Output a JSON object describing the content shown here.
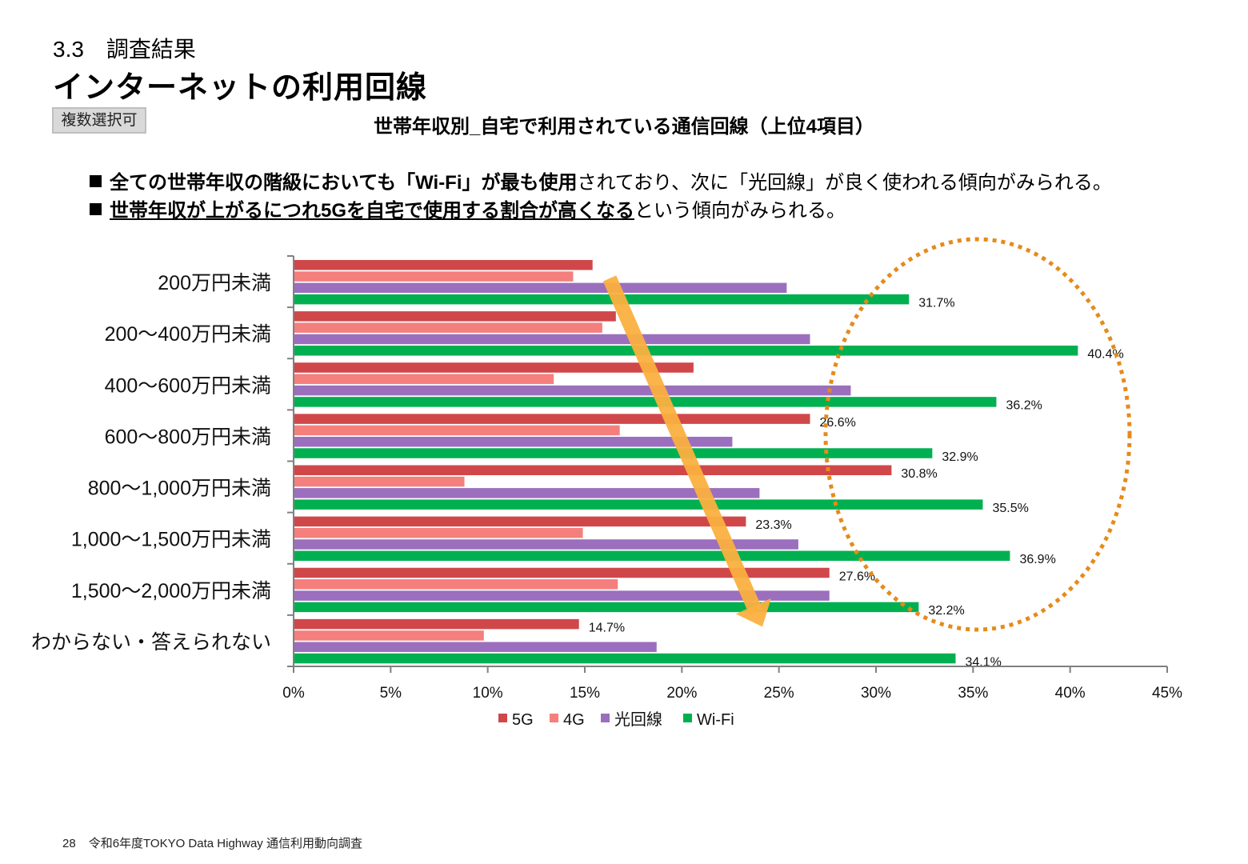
{
  "header": {
    "section": "3.3　調査結果",
    "title": "インターネットの利用回線",
    "badge": "複数選択可"
  },
  "bullets": [
    {
      "bold": "全ての世帯年収の階級においても「Wi-Fi」が最も使用",
      "rest": "されており、次に「光回線」が良く使われる傾向がみられる。"
    },
    {
      "underline": "世帯年収が上がるにつれ5Gを自宅で使用する割合が高くなる",
      "rest": "という傾向がみられる。"
    }
  ],
  "chart_data": {
    "type": "bar",
    "orientation": "horizontal",
    "title": "世帯年収別_自宅で利用されている通信回線（上位4項目）",
    "categories": [
      "200万円未満",
      "200～400万円未満",
      "400～600万円未満",
      "600～800万円未満",
      "800～1,000万円未満",
      "1,000～1,500万円未満",
      "1,500～2,000万円未満",
      "わからない・答えられない"
    ],
    "series": [
      {
        "name": "5G",
        "color": "#d0474a",
        "values": [
          15.4,
          16.6,
          20.6,
          26.6,
          30.8,
          23.3,
          27.6,
          14.7
        ],
        "labels": [
          "",
          "",
          "",
          "26.6%",
          "30.8%",
          "23.3%",
          "27.6%",
          "14.7%"
        ]
      },
      {
        "name": "4G",
        "color": "#f47f7c",
        "values": [
          14.4,
          15.9,
          13.4,
          16.8,
          8.8,
          14.9,
          16.7,
          9.8
        ],
        "labels": [
          "",
          "",
          "",
          "",
          "",
          "",
          "",
          ""
        ]
      },
      {
        "name": "光回線",
        "color": "#9b6fbd",
        "values": [
          25.4,
          26.6,
          28.7,
          22.6,
          24.0,
          26.0,
          27.6,
          18.7
        ],
        "labels": [
          "",
          "",
          "",
          "",
          "",
          "",
          "",
          ""
        ]
      },
      {
        "name": "Wi-Fi",
        "color": "#00b050",
        "values": [
          31.7,
          40.4,
          36.2,
          32.9,
          35.5,
          36.9,
          32.2,
          34.1
        ],
        "labels": [
          "31.7%",
          "40.4%",
          "36.2%",
          "32.9%",
          "35.5%",
          "36.9%",
          "32.2%",
          "34.1%"
        ]
      }
    ],
    "xlim": [
      0,
      45
    ],
    "xticks": [
      "0%",
      "5%",
      "10%",
      "15%",
      "20%",
      "25%",
      "30%",
      "35%",
      "40%",
      "45%"
    ],
    "grid": false,
    "legend": "bottom",
    "annotations": [
      "orange arrow trending downward-right across 5G bars",
      "dotted orange ellipse around Wi-Fi values"
    ]
  },
  "footer": {
    "page": "28",
    "text": "令和6年度TOKYO Data Highway 通信利用動向調査"
  }
}
